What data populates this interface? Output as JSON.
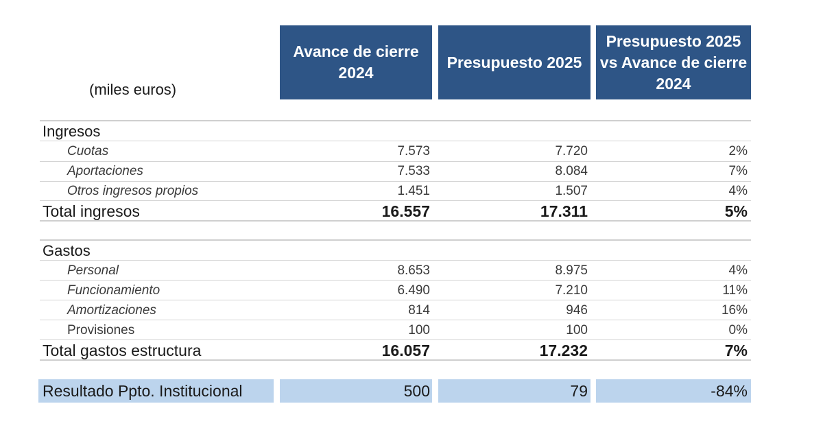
{
  "header": {
    "units": "(miles euros)",
    "col1": "Avance de cierre 2024",
    "col2": "Presupuesto 2025",
    "col3": "Presupuesto 2025 vs Avance de cierre 2024"
  },
  "ingresos": {
    "title": "Ingresos",
    "rows": [
      {
        "label": "Cuotas",
        "v1": "7.573",
        "v2": "7.720",
        "v3": "2%"
      },
      {
        "label": "Aportaciones",
        "v1": "7.533",
        "v2": "8.084",
        "v3": "7%"
      },
      {
        "label": "Otros ingresos propios",
        "v1": "1.451",
        "v2": "1.507",
        "v3": "4%"
      }
    ],
    "total": {
      "label": "Total ingresos",
      "v1": "16.557",
      "v2": "17.311",
      "v3": "5%"
    }
  },
  "gastos": {
    "title": "Gastos",
    "rows": [
      {
        "label": "Personal",
        "v1": "8.653",
        "v2": "8.975",
        "v3": "4%"
      },
      {
        "label": "Funcionamiento",
        "v1": "6.490",
        "v2": "7.210",
        "v3": "11%"
      },
      {
        "label": "Amortizaciones",
        "v1": "814",
        "v2": "946",
        "v3": "16%"
      },
      {
        "label": "Provisiones",
        "v1": "100",
        "v2": "100",
        "v3": "0%"
      }
    ],
    "total": {
      "label": "Total gastos estructura",
      "v1": "16.057",
      "v2": "17.232",
      "v3": "7%"
    }
  },
  "resultado": {
    "label": "Resultado Ppto. Institucional",
    "v1": "500",
    "v2": "79",
    "v3": "-84%"
  },
  "colors": {
    "header_bg": "#2e5586",
    "result_bg": "#bcd4ed"
  }
}
